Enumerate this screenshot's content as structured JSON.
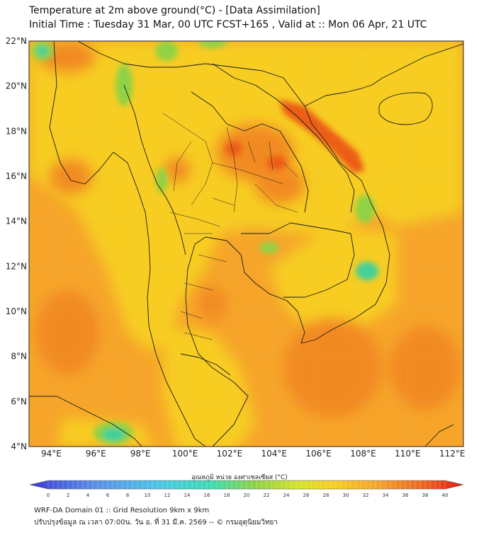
{
  "header": {
    "title_line1": "Temperature at 2m above ground(°C) - [Data Assimilation]",
    "title_line2": "Initial Time : Tuesday 31 Mar, 00 UTC FCST+165 , Valid at :: Mon 06 Apr, 21 UTC"
  },
  "map": {
    "lat_ticks": [
      "22°N",
      "20°N",
      "18°N",
      "16°N",
      "14°N",
      "12°N",
      "10°N",
      "8°N",
      "6°N",
      "4°N"
    ],
    "lon_ticks": [
      "94°E",
      "96°E",
      "98°E",
      "100°E",
      "102°E",
      "104°E",
      "106°E",
      "108°E",
      "110°E",
      "112°E"
    ],
    "colors": {
      "base_orange": "#f6a52a",
      "land_yellow": "#f7cd23",
      "warm_orange": "#f28a22",
      "hot_red": "#ec5d18",
      "cool_green": "#8fd244",
      "cold_teal": "#3fd09a",
      "border": "#1a1a1a"
    }
  },
  "colorbar": {
    "title": "อุณหภูมิ หน่วย องศาเซลเซียส (°C)",
    "labels": [
      "0",
      "2",
      "4",
      "6",
      "8",
      "10",
      "12",
      "14",
      "16",
      "18",
      "20",
      "22",
      "24",
      "26",
      "28",
      "30",
      "32",
      "34",
      "36",
      "38",
      "40"
    ]
  },
  "footer": {
    "line1": "WRF-DA Domain 01 :: Grid Resolution 9km x 9km",
    "line2": "ปรับปรุงข้อมูล ณ เวลา 07:00น. วัน อ. ที่ 31 มี.ค. 2569 -- © กรมอุตุนิยมวิทยา"
  }
}
